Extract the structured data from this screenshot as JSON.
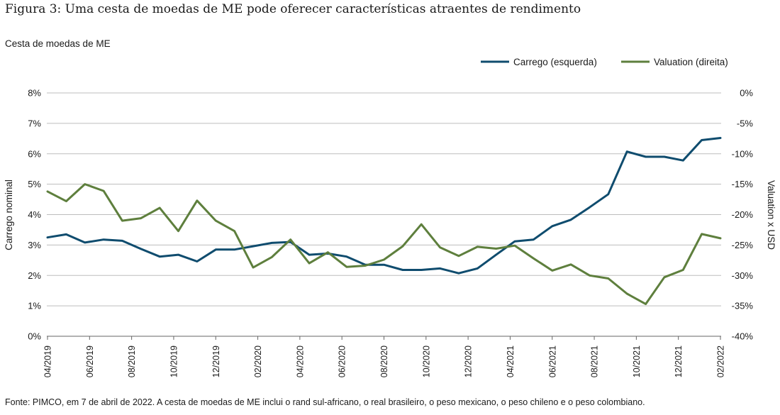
{
  "figure": {
    "title": "Figura 3: Uma cesta de moedas de ME pode oferecer características atraentes de rendimento",
    "subtitle": "Cesta de moedas de ME",
    "source": "Fonte: PIMCO, em 7 de abril de 2022. A cesta de moedas de ME inclui o rand sul-africano, o real brasileiro, o peso mexicano, o peso chileno e o peso colombiano."
  },
  "chart_data": {
    "type": "line",
    "xlabel": "",
    "ylabel_left": "Carrego nominal",
    "ylabel_right": "Valuation x USD",
    "x_tick_labels": [
      "04/2019",
      "06/2019",
      "08/2019",
      "10/2019",
      "12/2019",
      "02/2020",
      "04/2020",
      "06/2020",
      "08/2020",
      "10/2020",
      "12/2020",
      "04/2021",
      "06/2021",
      "08/2021",
      "10/2021",
      "12/2021",
      "02/2022"
    ],
    "left_axis": {
      "ylim": [
        0,
        8
      ],
      "ticks": [
        "0%",
        "1%",
        "2%",
        "3%",
        "4%",
        "5%",
        "6%",
        "7%",
        "8%"
      ]
    },
    "right_axis": {
      "ylim": [
        -40,
        0
      ],
      "ticks": [
        "-40%",
        "-35%",
        "-30%",
        "-25%",
        "-20%",
        "-15%",
        "-10%",
        "-5%",
        "0%"
      ]
    },
    "grid": "horizontal",
    "legend_position": "top-right",
    "series": [
      {
        "name": "Carrego (esquerda)",
        "axis": "left",
        "color": "#0f4c6e",
        "values": [
          3.25,
          3.35,
          3.08,
          3.18,
          3.14,
          2.87,
          2.62,
          2.68,
          2.46,
          2.85,
          2.85,
          2.96,
          3.07,
          3.1,
          2.68,
          2.72,
          2.62,
          2.35,
          2.35,
          2.18,
          2.18,
          2.23,
          2.07,
          2.23,
          2.68,
          3.12,
          3.18,
          3.62,
          3.83,
          4.24,
          4.67,
          6.07,
          5.9,
          5.9,
          5.78,
          6.45,
          6.52
        ]
      },
      {
        "name": "Valuation (direita)",
        "axis": "right",
        "color": "#5e7f3d",
        "values": [
          -16.2,
          -17.8,
          -15.0,
          -16.1,
          -21.0,
          -20.6,
          -18.9,
          -22.7,
          -17.7,
          -21.0,
          -22.7,
          -28.7,
          -27.0,
          -24.1,
          -28.0,
          -26.2,
          -28.6,
          -28.4,
          -27.4,
          -25.2,
          -21.6,
          -25.4,
          -26.8,
          -25.3,
          -25.6,
          -25.1,
          -27.2,
          -29.2,
          -28.2,
          -30.0,
          -30.5,
          -33.0,
          -34.7,
          -30.3,
          -29.1,
          -23.2,
          -23.9
        ]
      }
    ]
  }
}
